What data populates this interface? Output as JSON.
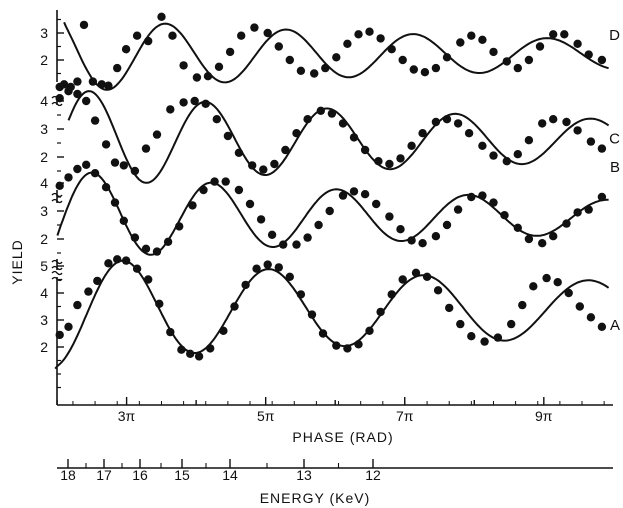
{
  "chart_data": {
    "type": "scatter",
    "title": "",
    "ylabel": "YIELD",
    "xlabel": "PHASE (RAD)",
    "x_units": "rad",
    "x_range": [
      6.28,
      31.4
    ],
    "x_ticks": [
      {
        "value": 9.42,
        "label": "3π"
      },
      {
        "value": 15.71,
        "label": "5π"
      },
      {
        "value": 21.99,
        "label": "7π"
      },
      {
        "value": 28.27,
        "label": "9π"
      }
    ],
    "energy_axis": {
      "label": "ENERGY (KeV)",
      "range_kev": [
        18,
        11.2
      ],
      "ticks": [
        "18",
        "17",
        "16",
        "15",
        "14",
        "13",
        "12"
      ]
    },
    "y_tick_labels": {
      "D": [
        "2",
        "3"
      ],
      "C": [
        "2",
        "3",
        "4"
      ],
      "B": [
        "2",
        "3",
        "4"
      ],
      "A": [
        "2",
        "3",
        "4",
        "5"
      ]
    },
    "series": [
      {
        "name": "D",
        "fit_phase_start": 6.6,
        "fit_offset": 2.2,
        "fit_amp_start": 1.6,
        "fit_amp_end": 0.55,
        "fit_period": 5.2,
        "fit_phase_max": 11.2,
        "points": [
          [
            6.4,
            1.0
          ],
          [
            6.6,
            1.1
          ],
          [
            6.9,
            1.0
          ],
          [
            7.2,
            1.2
          ],
          [
            7.5,
            3.3
          ],
          [
            7.9,
            1.2
          ],
          [
            8.3,
            1.1
          ],
          [
            8.6,
            1.05
          ],
          [
            9.0,
            1.7
          ],
          [
            9.4,
            2.4
          ],
          [
            9.9,
            2.9
          ],
          [
            10.4,
            2.7
          ],
          [
            11.0,
            3.6
          ],
          [
            11.5,
            2.9
          ],
          [
            12.0,
            1.8
          ],
          [
            12.6,
            1.35
          ],
          [
            13.1,
            1.4
          ],
          [
            13.6,
            1.75
          ],
          [
            14.1,
            2.3
          ],
          [
            14.6,
            2.9
          ],
          [
            15.2,
            3.2
          ],
          [
            15.8,
            3.0
          ],
          [
            16.3,
            2.5
          ],
          [
            16.8,
            2.0
          ],
          [
            17.3,
            1.6
          ],
          [
            17.9,
            1.5
          ],
          [
            18.4,
            1.7
          ],
          [
            18.9,
            2.1
          ],
          [
            19.4,
            2.6
          ],
          [
            19.9,
            2.95
          ],
          [
            20.4,
            3.05
          ],
          [
            20.9,
            2.8
          ],
          [
            21.4,
            2.4
          ],
          [
            21.9,
            2.0
          ],
          [
            22.4,
            1.65
          ],
          [
            22.9,
            1.55
          ],
          [
            23.4,
            1.7
          ],
          [
            23.9,
            2.1
          ],
          [
            24.5,
            2.65
          ],
          [
            25.0,
            2.9
          ],
          [
            25.5,
            2.75
          ],
          [
            26.0,
            2.3
          ],
          [
            26.6,
            1.95
          ],
          [
            27.1,
            1.7
          ],
          [
            27.6,
            2.0
          ],
          [
            28.1,
            2.5
          ],
          [
            28.7,
            2.95
          ],
          [
            29.2,
            2.95
          ],
          [
            29.8,
            2.6
          ],
          [
            30.3,
            2.2
          ],
          [
            30.9,
            2.0
          ]
        ]
      },
      {
        "name": "C",
        "fit_phase_start": 6.8,
        "fit_offset": 2.6,
        "fit_amp_start": 2.0,
        "fit_amp_end": 0.75,
        "fit_period": 5.2,
        "fit_phase_max": 13.0,
        "points": [
          [
            6.4,
            4.1
          ],
          [
            6.8,
            4.35
          ],
          [
            7.2,
            4.25
          ],
          [
            7.6,
            4.0
          ],
          [
            8.0,
            3.3
          ],
          [
            8.5,
            2.45
          ],
          [
            8.9,
            1.8
          ],
          [
            9.3,
            1.7
          ],
          [
            9.8,
            1.5
          ],
          [
            10.3,
            2.3
          ],
          [
            10.8,
            2.8
          ],
          [
            11.4,
            3.7
          ],
          [
            12.0,
            3.95
          ],
          [
            12.5,
            4.0
          ],
          [
            13.0,
            3.9
          ],
          [
            13.5,
            3.35
          ],
          [
            14.0,
            2.75
          ],
          [
            14.5,
            2.15
          ],
          [
            15.1,
            1.7
          ],
          [
            15.6,
            1.55
          ],
          [
            16.1,
            1.75
          ],
          [
            16.6,
            2.25
          ],
          [
            17.1,
            2.85
          ],
          [
            17.6,
            3.35
          ],
          [
            18.2,
            3.65
          ],
          [
            18.7,
            3.55
          ],
          [
            19.2,
            3.2
          ],
          [
            19.7,
            2.7
          ],
          [
            20.2,
            2.25
          ],
          [
            20.8,
            1.85
          ],
          [
            21.3,
            1.75
          ],
          [
            21.8,
            1.95
          ],
          [
            22.3,
            2.4
          ],
          [
            22.8,
            2.85
          ],
          [
            23.4,
            3.25
          ],
          [
            23.9,
            3.35
          ],
          [
            24.4,
            3.2
          ],
          [
            24.9,
            2.85
          ],
          [
            25.5,
            2.4
          ],
          [
            26.0,
            2.05
          ],
          [
            26.6,
            1.85
          ],
          [
            27.1,
            2.1
          ],
          [
            27.6,
            2.6
          ],
          [
            28.2,
            3.2
          ],
          [
            28.7,
            3.35
          ],
          [
            29.3,
            3.25
          ],
          [
            29.8,
            2.95
          ],
          [
            30.4,
            2.55
          ],
          [
            30.9,
            2.3
          ]
        ]
      },
      {
        "name": "B",
        "fit_phase_start": 6.3,
        "fit_offset": 2.8,
        "fit_amp_start": 1.9,
        "fit_amp_end": 0.6,
        "fit_period": 5.2,
        "fit_phase_max": 7.9,
        "points": [
          [
            6.4,
            3.9
          ],
          [
            6.8,
            4.2
          ],
          [
            7.2,
            4.5
          ],
          [
            7.6,
            4.65
          ],
          [
            8.0,
            4.35
          ],
          [
            8.5,
            3.85
          ],
          [
            8.9,
            3.3
          ],
          [
            9.3,
            2.65
          ],
          [
            9.8,
            2.05
          ],
          [
            10.3,
            1.65
          ],
          [
            10.8,
            1.55
          ],
          [
            11.3,
            1.9
          ],
          [
            11.8,
            2.45
          ],
          [
            12.4,
            3.2
          ],
          [
            12.9,
            3.75
          ],
          [
            13.4,
            4.05
          ],
          [
            13.9,
            4.05
          ],
          [
            14.5,
            3.75
          ],
          [
            15.0,
            3.25
          ],
          [
            15.5,
            2.7
          ],
          [
            16.0,
            2.15
          ],
          [
            16.5,
            1.8
          ],
          [
            17.1,
            1.8
          ],
          [
            17.6,
            2.05
          ],
          [
            18.1,
            2.5
          ],
          [
            18.6,
            3.0
          ],
          [
            19.2,
            3.55
          ],
          [
            19.7,
            3.7
          ],
          [
            20.2,
            3.6
          ],
          [
            20.7,
            3.25
          ],
          [
            21.3,
            2.8
          ],
          [
            21.8,
            2.35
          ],
          [
            22.3,
            1.95
          ],
          [
            22.8,
            1.85
          ],
          [
            23.4,
            2.1
          ],
          [
            23.9,
            2.5
          ],
          [
            24.4,
            3.05
          ],
          [
            25.0,
            3.5
          ],
          [
            25.5,
            3.55
          ],
          [
            26.0,
            3.3
          ],
          [
            26.5,
            2.85
          ],
          [
            27.1,
            2.4
          ],
          [
            27.6,
            2.0
          ],
          [
            28.2,
            1.85
          ],
          [
            28.7,
            2.1
          ],
          [
            29.3,
            2.55
          ],
          [
            29.8,
            2.95
          ],
          [
            30.3,
            3.05
          ],
          [
            30.9,
            3.5
          ]
        ]
      },
      {
        "name": "A",
        "fit_phase_start": 6.2,
        "fit_offset": 3.4,
        "fit_amp_start": 2.2,
        "fit_amp_end": 1.05,
        "fit_period": 6.28,
        "fit_phase_max": 9.3,
        "points": [
          [
            6.4,
            2.45
          ],
          [
            6.8,
            2.75
          ],
          [
            7.2,
            3.55
          ],
          [
            7.7,
            4.05
          ],
          [
            8.1,
            4.45
          ],
          [
            8.6,
            5.1
          ],
          [
            9.0,
            5.25
          ],
          [
            9.4,
            5.2
          ],
          [
            9.9,
            4.9
          ],
          [
            10.4,
            4.5
          ],
          [
            10.9,
            3.6
          ],
          [
            11.4,
            2.55
          ],
          [
            11.9,
            1.9
          ],
          [
            12.3,
            1.75
          ],
          [
            12.7,
            1.65
          ],
          [
            13.2,
            1.95
          ],
          [
            13.8,
            2.6
          ],
          [
            14.3,
            3.5
          ],
          [
            14.8,
            4.3
          ],
          [
            15.3,
            4.9
          ],
          [
            15.8,
            5.05
          ],
          [
            16.3,
            4.95
          ],
          [
            16.8,
            4.6
          ],
          [
            17.3,
            3.95
          ],
          [
            17.8,
            3.2
          ],
          [
            18.3,
            2.5
          ],
          [
            18.9,
            2.05
          ],
          [
            19.4,
            1.95
          ],
          [
            19.9,
            2.1
          ],
          [
            20.4,
            2.6
          ],
          [
            20.9,
            3.3
          ],
          [
            21.4,
            3.95
          ],
          [
            21.9,
            4.5
          ],
          [
            22.5,
            4.75
          ],
          [
            23.0,
            4.6
          ],
          [
            23.5,
            4.1
          ],
          [
            24.0,
            3.45
          ],
          [
            24.5,
            2.85
          ],
          [
            25.0,
            2.4
          ],
          [
            25.6,
            2.2
          ],
          [
            26.2,
            2.35
          ],
          [
            26.8,
            2.85
          ],
          [
            27.3,
            3.55
          ],
          [
            27.8,
            4.25
          ],
          [
            28.4,
            4.55
          ],
          [
            28.9,
            4.4
          ],
          [
            29.4,
            4.0
          ],
          [
            29.9,
            3.5
          ],
          [
            30.4,
            3.1
          ],
          [
            30.9,
            2.75
          ]
        ]
      }
    ]
  }
}
